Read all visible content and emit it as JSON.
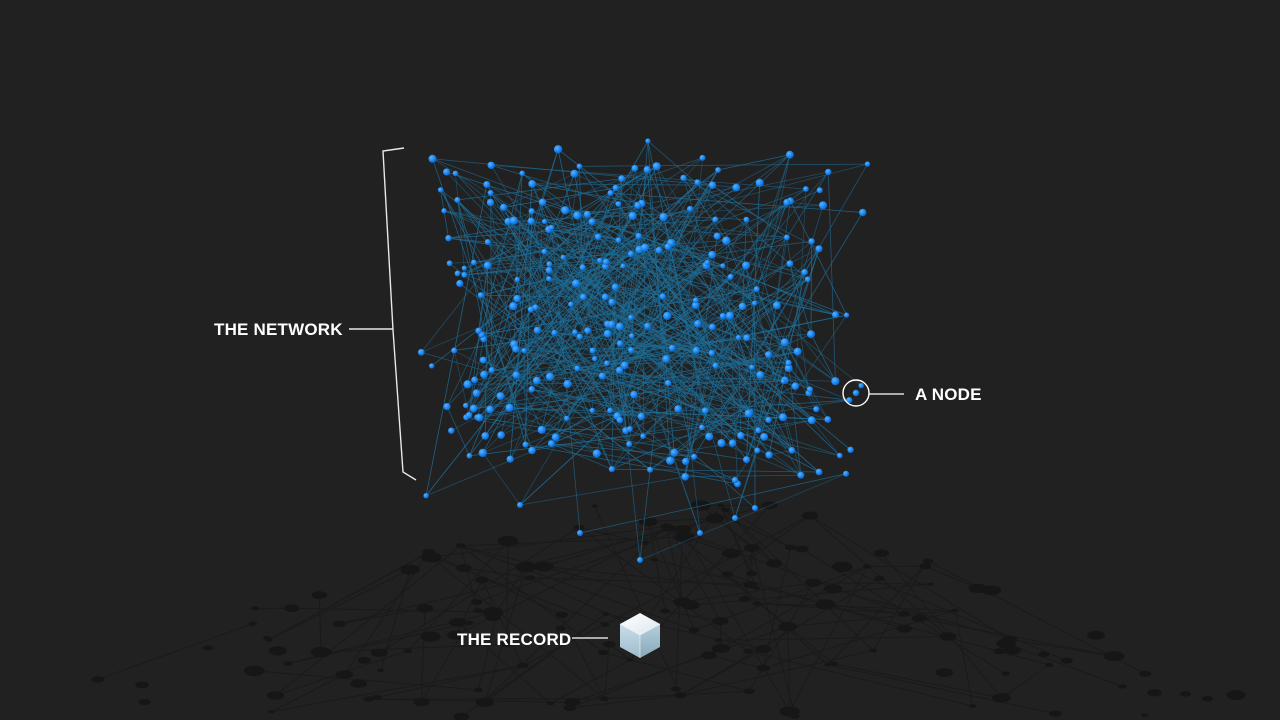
{
  "labels": {
    "network": "THE NETWORK",
    "node": "A NODE",
    "record": "THE RECORD"
  },
  "colors": {
    "background": "#212121",
    "node": "#1a86f0",
    "edge": "#1e6e99",
    "callout": "#ffffff",
    "shadow": "#161616"
  },
  "icons": {
    "record": "cube-icon",
    "node_marker": "circle-highlight"
  }
}
